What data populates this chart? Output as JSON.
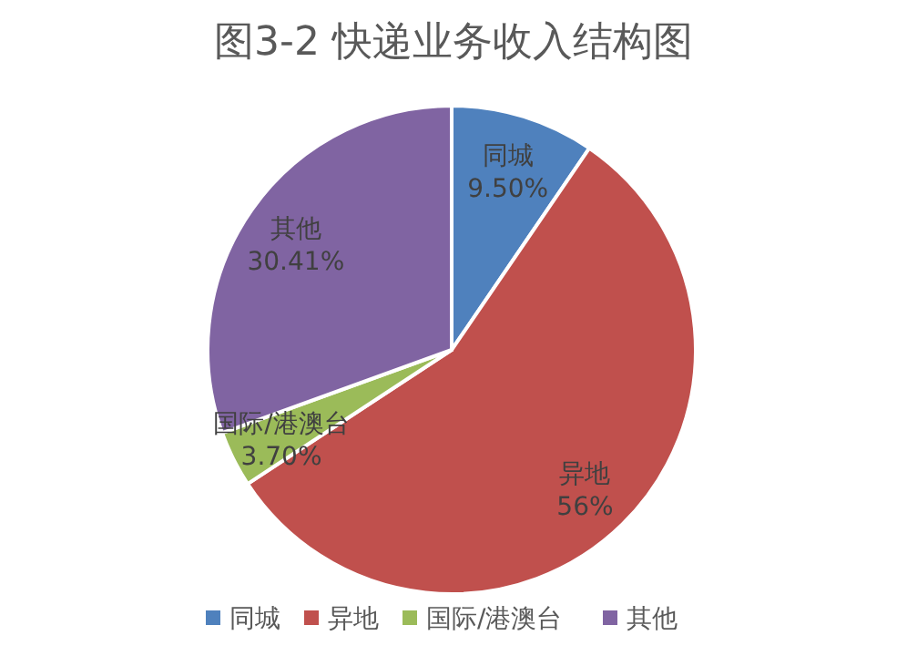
{
  "chart_data": {
    "type": "pie",
    "title": "图3-2  快递业务收入结构图",
    "categories": [
      "同城",
      "异地",
      "国际/港澳台",
      "其他"
    ],
    "values": [
      9.5,
      56,
      3.7,
      30.41
    ],
    "value_labels": [
      "9.50%",
      "56%",
      "3.70%",
      "30.41%"
    ],
    "colors": [
      "#4f81bd",
      "#c0504d",
      "#9bbb59",
      "#8064a2"
    ],
    "legend": "bottom"
  }
}
